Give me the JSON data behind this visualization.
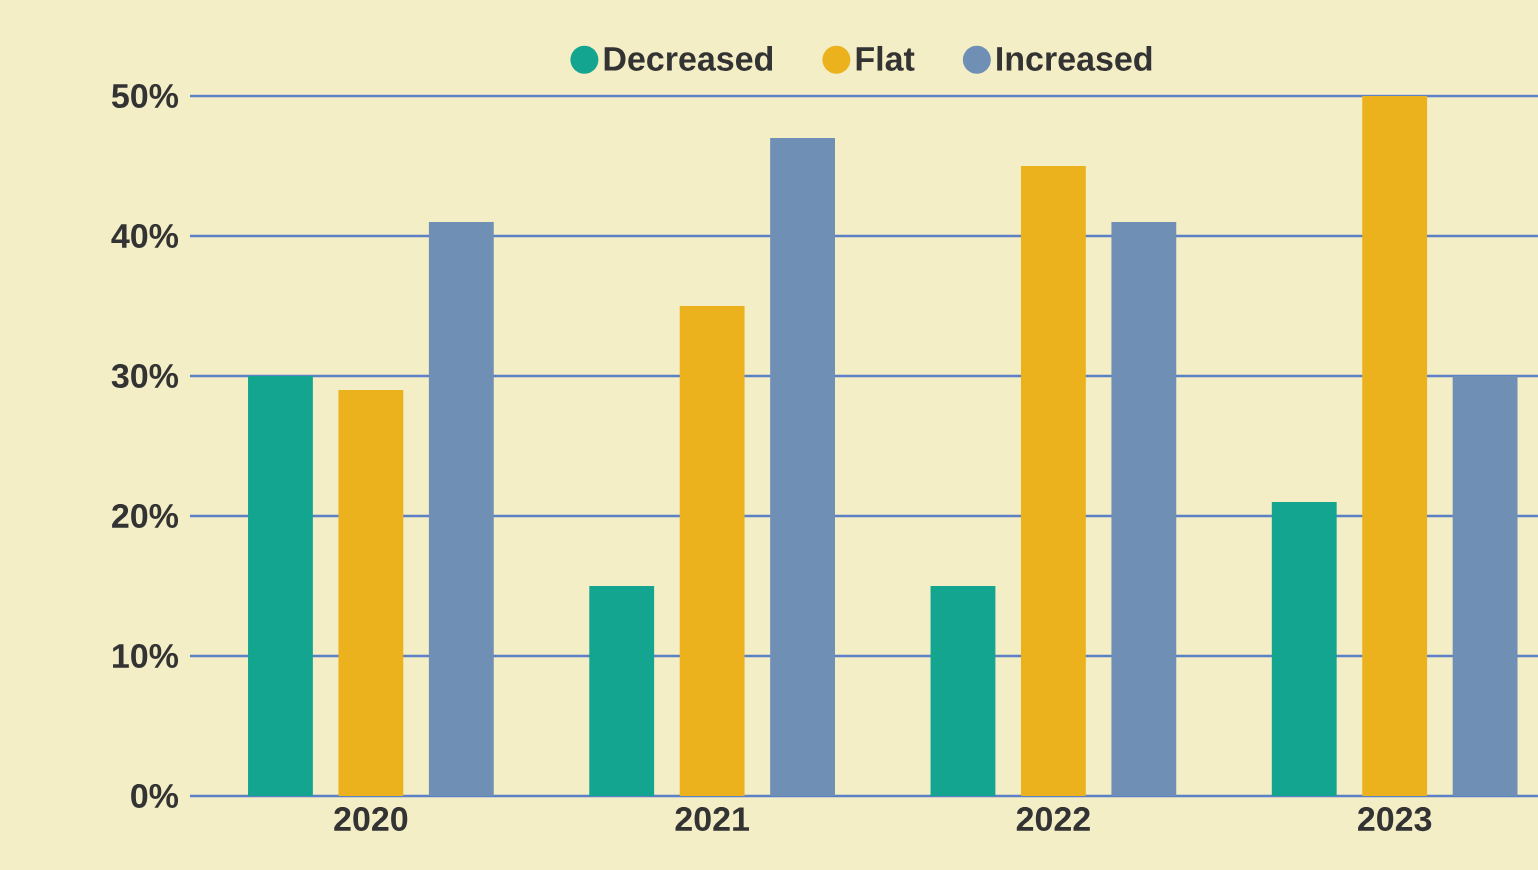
{
  "chart_data": {
    "type": "bar",
    "categories": [
      "2020",
      "2021",
      "2022",
      "2023"
    ],
    "series": [
      {
        "name": "Decreased",
        "color": "#14a590",
        "values": [
          30,
          15,
          15,
          21
        ]
      },
      {
        "name": "Flat",
        "color": "#ebb21e",
        "values": [
          29,
          35,
          45,
          50
        ]
      },
      {
        "name": "Increased",
        "color": "#6f8fb5",
        "values": [
          41,
          47,
          41,
          30
        ]
      }
    ],
    "ylim": [
      0,
      50
    ],
    "yticks": [
      {
        "value": 0,
        "label": "0%"
      },
      {
        "value": 10,
        "label": "10%"
      },
      {
        "value": 20,
        "label": "20%"
      },
      {
        "value": 30,
        "label": "30%"
      },
      {
        "value": 40,
        "label": "40%"
      },
      {
        "value": 50,
        "label": "50%"
      }
    ],
    "grid": "y",
    "legend": "top"
  }
}
